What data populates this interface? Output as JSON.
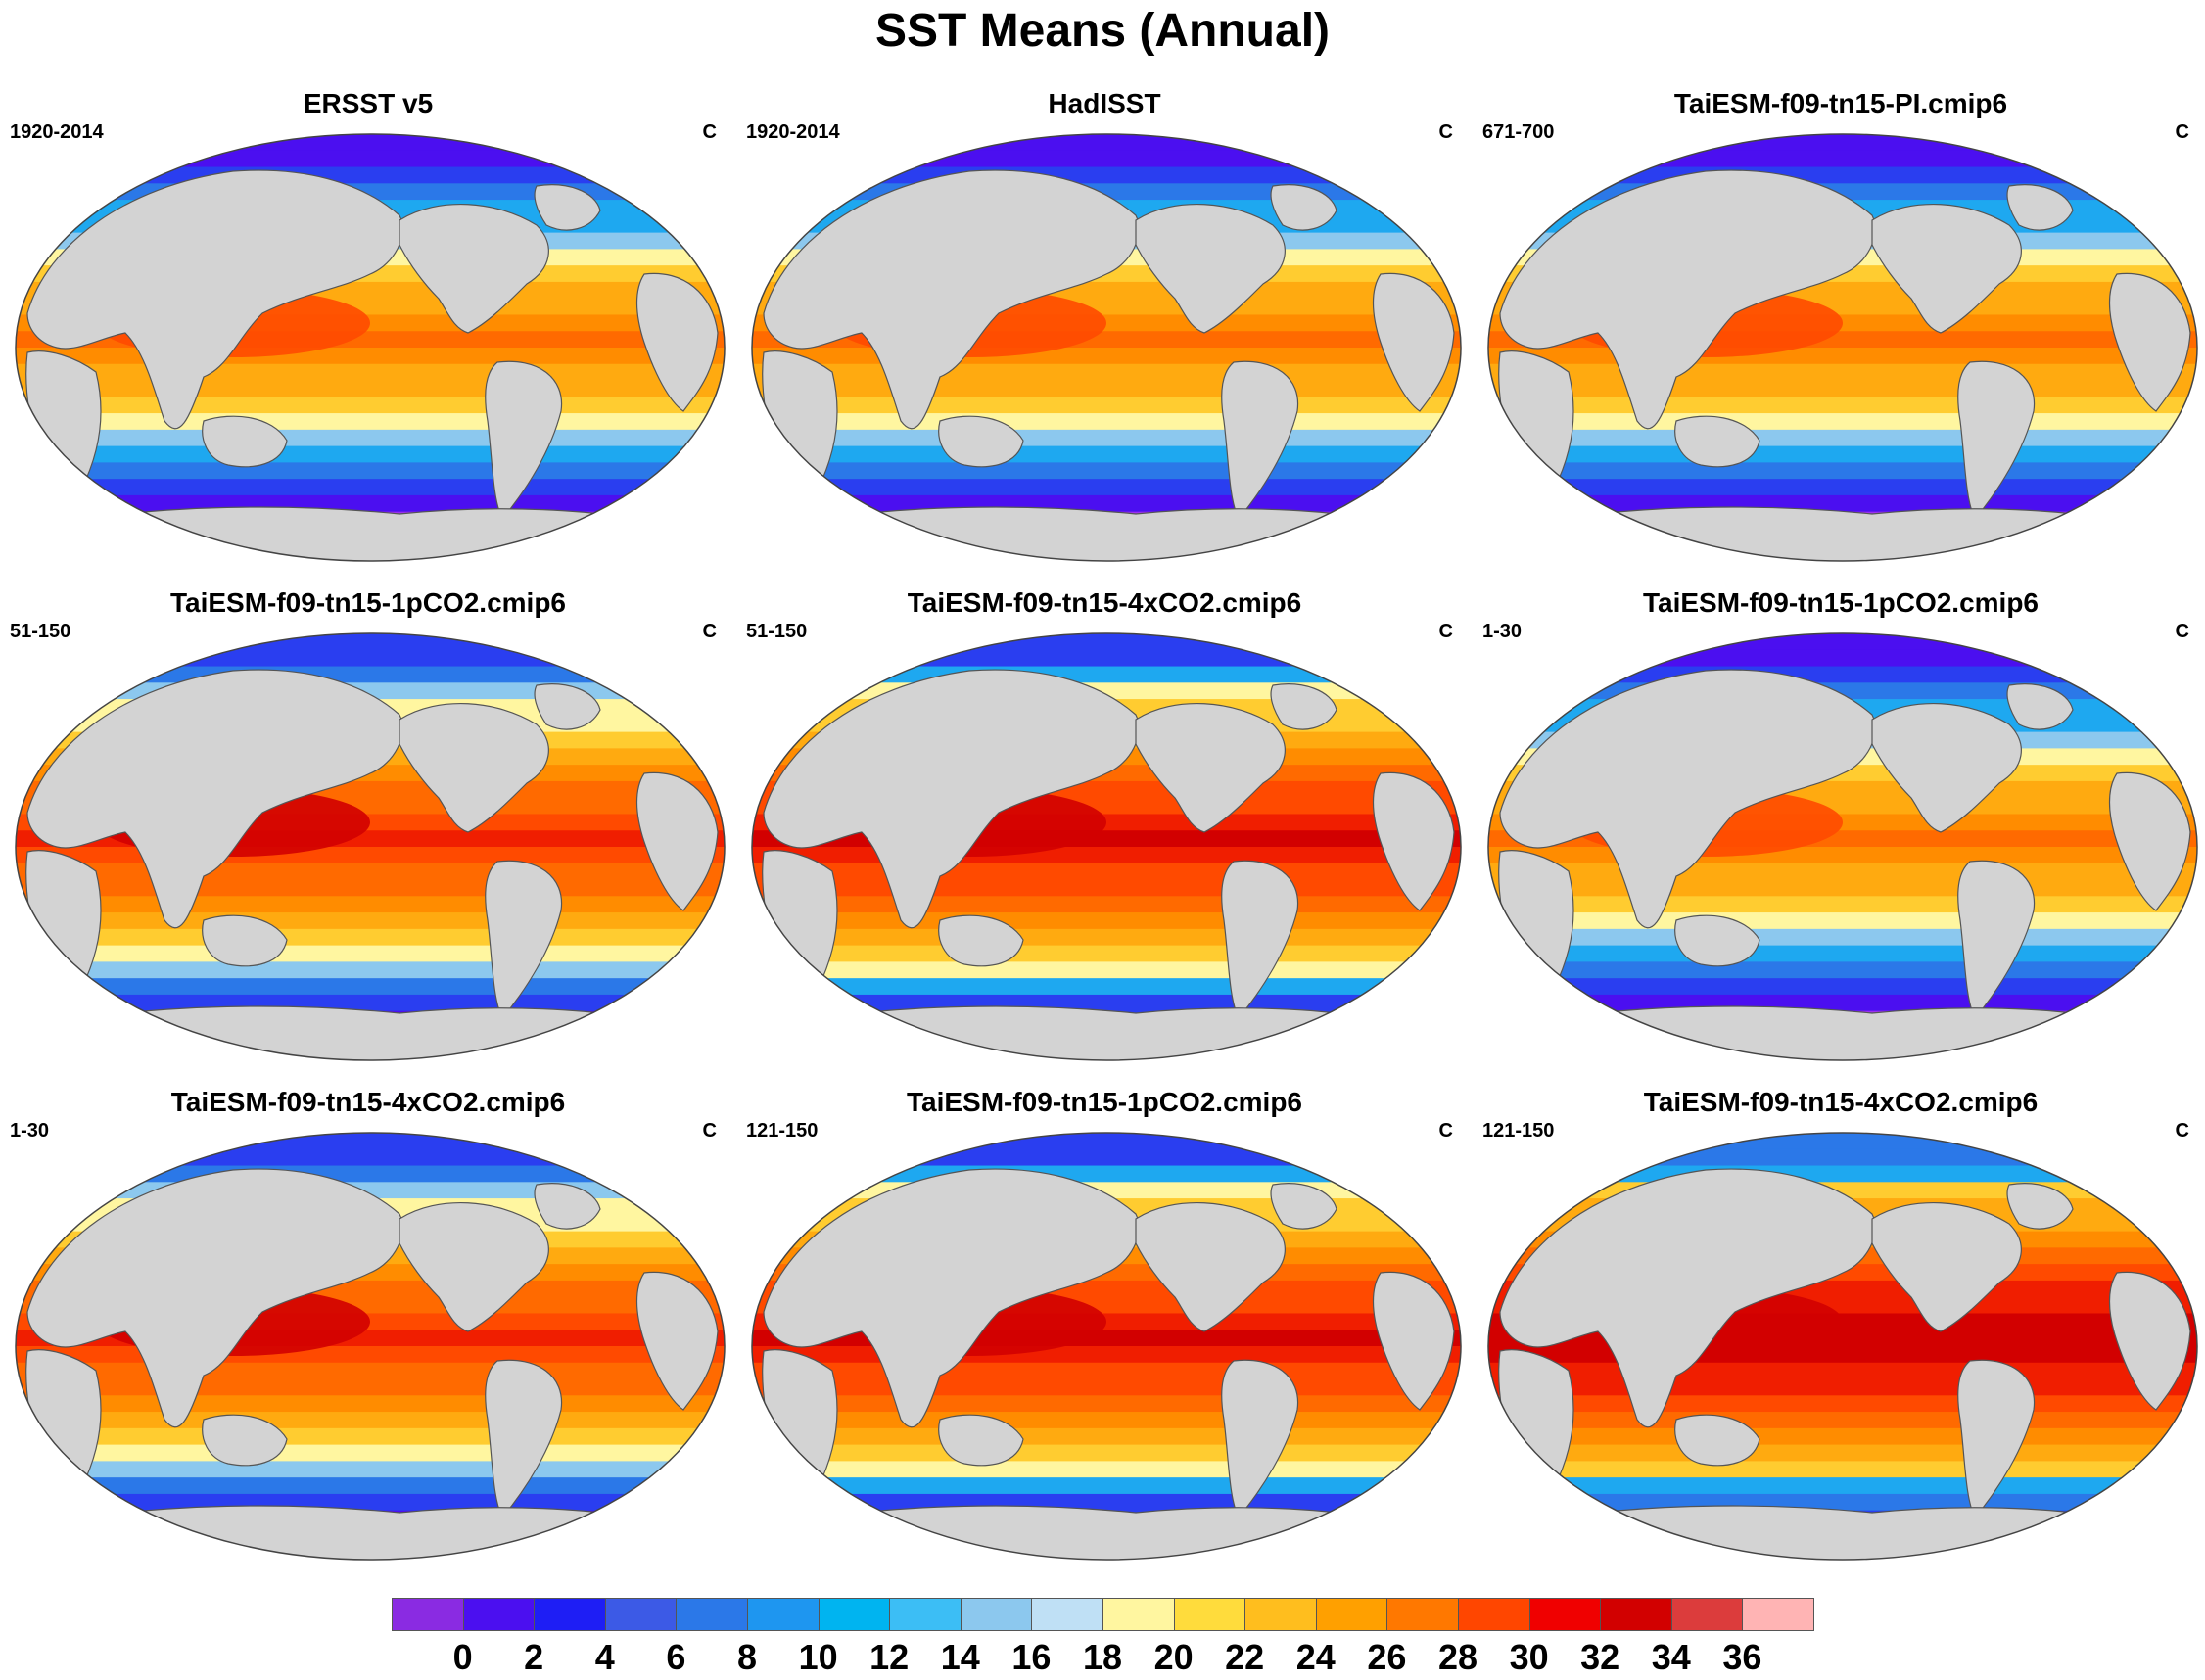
{
  "title": "SST Means (Annual)",
  "units": "C",
  "panels": [
    {
      "title": "ERSST v5",
      "period": "1920-2014",
      "units": "C",
      "warm_level": 0,
      "cold_level": 0
    },
    {
      "title": "HadISST",
      "period": "1920-2014",
      "units": "C",
      "warm_level": 0,
      "cold_level": 0
    },
    {
      "title": "TaiESM-f09-tn15-PI.cmip6",
      "period": "671-700",
      "units": "C",
      "warm_level": 0,
      "cold_level": 0
    },
    {
      "title": "TaiESM-f09-tn15-1pCO2.cmip6",
      "period": "51-150",
      "units": "C",
      "warm_level": 2,
      "cold_level": 1
    },
    {
      "title": "TaiESM-f09-tn15-4xCO2.cmip6",
      "period": "51-150",
      "units": "C",
      "warm_level": 3,
      "cold_level": 1
    },
    {
      "title": "TaiESM-f09-tn15-1pCO2.cmip6",
      "period": "1-30",
      "units": "C",
      "warm_level": 0,
      "cold_level": 0
    },
    {
      "title": "TaiESM-f09-tn15-4xCO2.cmip6",
      "period": "1-30",
      "units": "C",
      "warm_level": 2,
      "cold_level": 1
    },
    {
      "title": "TaiESM-f09-tn15-1pCO2.cmip6",
      "period": "121-150",
      "units": "C",
      "warm_level": 3,
      "cold_level": 1
    },
    {
      "title": "TaiESM-f09-tn15-4xCO2.cmip6",
      "period": "121-150",
      "units": "C",
      "warm_level": 4,
      "cold_level": 2
    }
  ],
  "colorbar": {
    "colors": [
      "#8a2be2",
      "#4b0ff0",
      "#1e1ef5",
      "#3c5ae6",
      "#2b78e8",
      "#1e96f0",
      "#00b4f0",
      "#3cbef5",
      "#8cc8ee",
      "#bfe0f5",
      "#fff6a0",
      "#ffdc3c",
      "#ffbe1e",
      "#ffa000",
      "#ff7800",
      "#ff4600",
      "#f00000",
      "#d20000",
      "#dc3c3c",
      "#ffb4b4"
    ],
    "labels": [
      "0",
      "2",
      "4",
      "6",
      "8",
      "10",
      "12",
      "14",
      "16",
      "18",
      "20",
      "22",
      "24",
      "26",
      "28",
      "30",
      "32",
      "34",
      "36"
    ]
  },
  "ocean_bands": [
    "#9a2ff0",
    "#4b0ff0",
    "#2a3ef0",
    "#2b78e8",
    "#1ea8f0",
    "#8cc8ee",
    "#fff6a0",
    "#ffcc30",
    "#ffaa10",
    "#ff8c00",
    "#ff6a00",
    "#ff4a00",
    "#f01e00",
    "#d20000"
  ],
  "land_color": "#d3d3d3"
}
